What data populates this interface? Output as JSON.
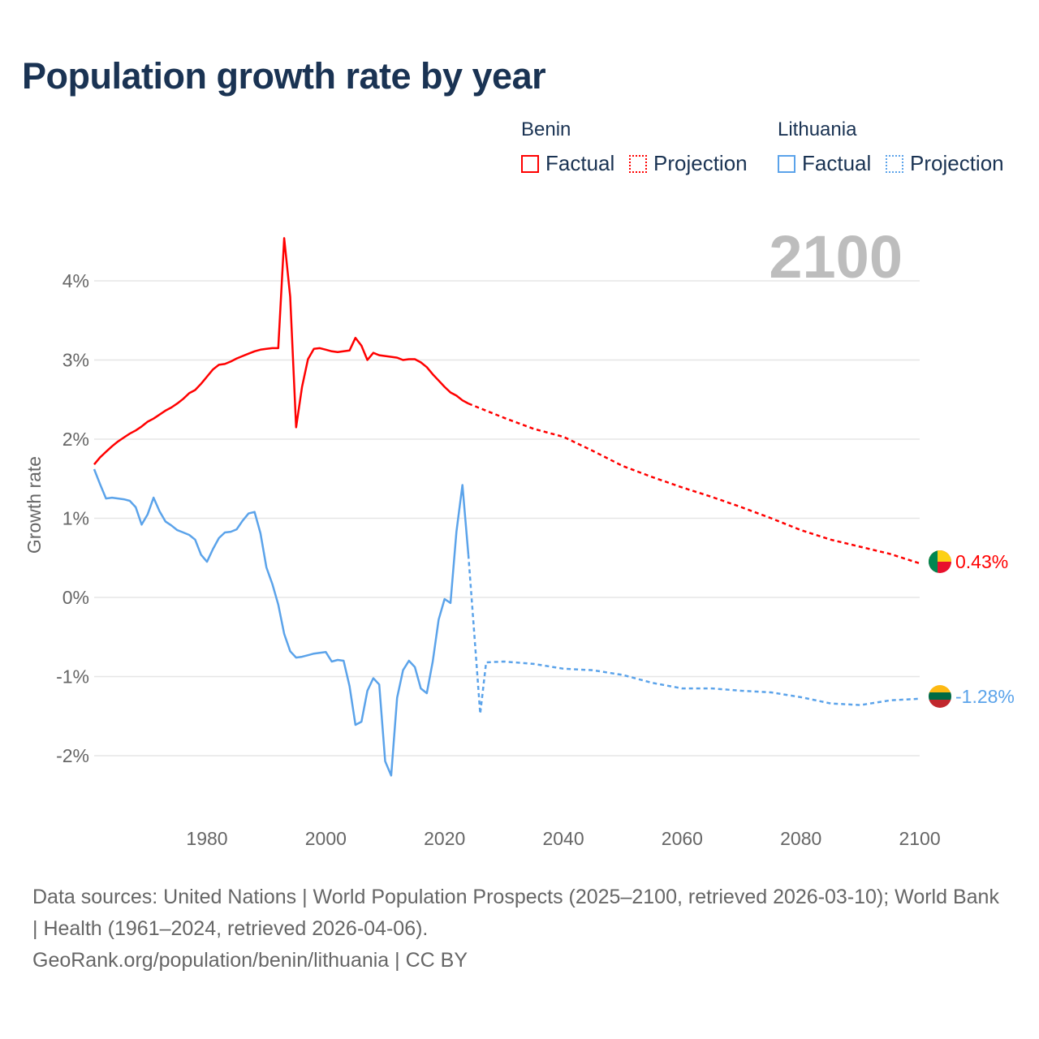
{
  "title": "Population growth rate by year",
  "legend": {
    "groups": [
      {
        "name": "Benin",
        "color": "#ff0000",
        "factual_label": "Factual",
        "projection_label": "Projection"
      },
      {
        "name": "Lithuania",
        "color": "#5ba3ea",
        "factual_label": "Factual",
        "projection_label": "Projection"
      }
    ]
  },
  "chart_data": {
    "type": "line",
    "year_label": "2100",
    "ylabel": "Growth rate",
    "xlim": [
      1961,
      2100
    ],
    "ylim": [
      -2.8,
      4.6
    ],
    "x_ticks": [
      1980,
      2000,
      2020,
      2040,
      2060,
      2080,
      2100
    ],
    "y_ticks": [
      {
        "v": 4,
        "label": "4%"
      },
      {
        "v": 3,
        "label": "3%"
      },
      {
        "v": 2,
        "label": "2%"
      },
      {
        "v": 1,
        "label": "1%"
      },
      {
        "v": 0,
        "label": "0%"
      },
      {
        "v": -1,
        "label": "-1%"
      },
      {
        "v": -2,
        "label": "-2%"
      }
    ],
    "grid": true,
    "series": [
      {
        "name": "Benin",
        "color": "#ff0000",
        "end_label": "0.43%",
        "factual": {
          "start_year": 1961,
          "values": [
            1.68,
            1.77,
            1.84,
            1.91,
            1.97,
            2.02,
            2.07,
            2.11,
            2.16,
            2.22,
            2.26,
            2.31,
            2.36,
            2.4,
            2.45,
            2.51,
            2.58,
            2.62,
            2.7,
            2.79,
            2.88,
            2.94,
            2.95,
            2.98,
            3.02,
            3.05,
            3.08,
            3.11,
            3.13,
            3.14,
            3.15,
            3.15,
            4.54,
            3.8,
            2.15,
            2.66,
            3.01,
            3.14,
            3.15,
            3.13,
            3.11,
            3.1,
            3.11,
            3.12,
            3.28,
            3.18,
            3.0,
            3.09,
            3.06,
            3.05,
            3.04,
            3.03,
            3.0,
            3.01,
            3.01,
            2.97,
            2.91,
            2.82,
            2.74,
            2.66,
            2.59,
            2.55,
            2.49,
            2.45
          ]
        },
        "projection": {
          "years": [
            2024,
            2025,
            2030,
            2035,
            2040,
            2045,
            2050,
            2055,
            2060,
            2065,
            2070,
            2075,
            2080,
            2085,
            2090,
            2095,
            2100
          ],
          "values": [
            2.45,
            2.42,
            2.27,
            2.13,
            2.03,
            1.85,
            1.66,
            1.52,
            1.39,
            1.27,
            1.14,
            1.0,
            0.85,
            0.73,
            0.64,
            0.55,
            0.43
          ]
        }
      },
      {
        "name": "Lithuania",
        "color": "#5ba3ea",
        "end_label": "-1.28%",
        "factual": {
          "start_year": 1961,
          "values": [
            1.62,
            1.43,
            1.25,
            1.26,
            1.25,
            1.24,
            1.22,
            1.14,
            0.92,
            1.05,
            1.26,
            1.09,
            0.96,
            0.91,
            0.85,
            0.82,
            0.79,
            0.73,
            0.54,
            0.45,
            0.61,
            0.75,
            0.82,
            0.83,
            0.86,
            0.97,
            1.06,
            1.08,
            0.81,
            0.38,
            0.17,
            -0.09,
            -0.46,
            -0.68,
            -0.76,
            -0.75,
            -0.73,
            -0.71,
            -0.7,
            -0.69,
            -0.81,
            -0.79,
            -0.8,
            -1.12,
            -1.61,
            -1.57,
            -1.18,
            -1.02,
            -1.1,
            -2.07,
            -2.25,
            -1.27,
            -0.92,
            -0.8,
            -0.88,
            -1.15,
            -1.21,
            -0.81,
            -0.28,
            -0.02,
            -0.07,
            0.83,
            1.42,
            0.54
          ]
        },
        "projection": {
          "years": [
            2024,
            2025,
            2026,
            2027,
            2030,
            2035,
            2040,
            2045,
            2050,
            2055,
            2060,
            2065,
            2070,
            2075,
            2080,
            2085,
            2090,
            2095,
            2100
          ],
          "values": [
            0.54,
            -0.46,
            -1.47,
            -0.82,
            -0.81,
            -0.84,
            -0.9,
            -0.92,
            -0.98,
            -1.08,
            -1.15,
            -1.15,
            -1.18,
            -1.2,
            -1.26,
            -1.34,
            -1.36,
            -1.3,
            -1.28
          ]
        }
      }
    ]
  },
  "footer": {
    "sources": "Data sources: United Nations | World Population Prospects (2025–2100, retrieved 2026-03-10); World Bank | Health (1961–2024, retrieved 2026-04-06).",
    "credit": "GeoRank.org/population/benin/lithuania | CC BY"
  }
}
